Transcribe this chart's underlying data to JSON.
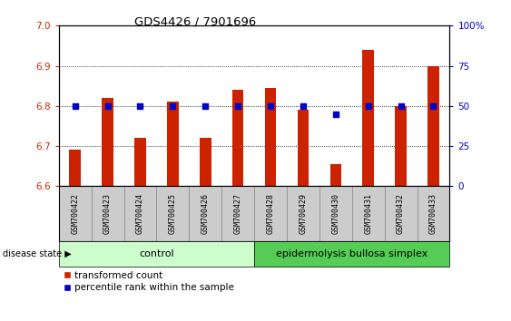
{
  "title": "GDS4426 / 7901696",
  "samples": [
    "GSM700422",
    "GSM700423",
    "GSM700424",
    "GSM700425",
    "GSM700426",
    "GSM700427",
    "GSM700428",
    "GSM700429",
    "GSM700430",
    "GSM700431",
    "GSM700432",
    "GSM700433"
  ],
  "red_values": [
    6.69,
    6.82,
    6.72,
    6.81,
    6.72,
    6.84,
    6.845,
    6.79,
    6.655,
    6.94,
    6.8,
    6.9
  ],
  "blue_percentiles": [
    50,
    50,
    50,
    50,
    50,
    50,
    50,
    50,
    45,
    50,
    50,
    50
  ],
  "ylim_left": [
    6.6,
    7.0
  ],
  "ylim_right": [
    0,
    100
  ],
  "yticks_left": [
    6.6,
    6.7,
    6.8,
    6.9,
    7.0
  ],
  "yticks_right": [
    0,
    25,
    50,
    75,
    100
  ],
  "ytick_right_labels": [
    "0",
    "25",
    "50",
    "75",
    "100%"
  ],
  "control_samples": 6,
  "control_label": "control",
  "disease_label": "epidermolysis bullosa simplex",
  "disease_state_label": "disease state",
  "legend_red": "transformed count",
  "legend_blue": "percentile rank within the sample",
  "bar_color": "#cc2200",
  "dot_color": "#0000cc",
  "control_bg": "#ccffcc",
  "disease_bg": "#55cc55",
  "sample_bg": "#cccccc",
  "left_tick_color": "#cc2200",
  "right_tick_color": "#0000cc"
}
